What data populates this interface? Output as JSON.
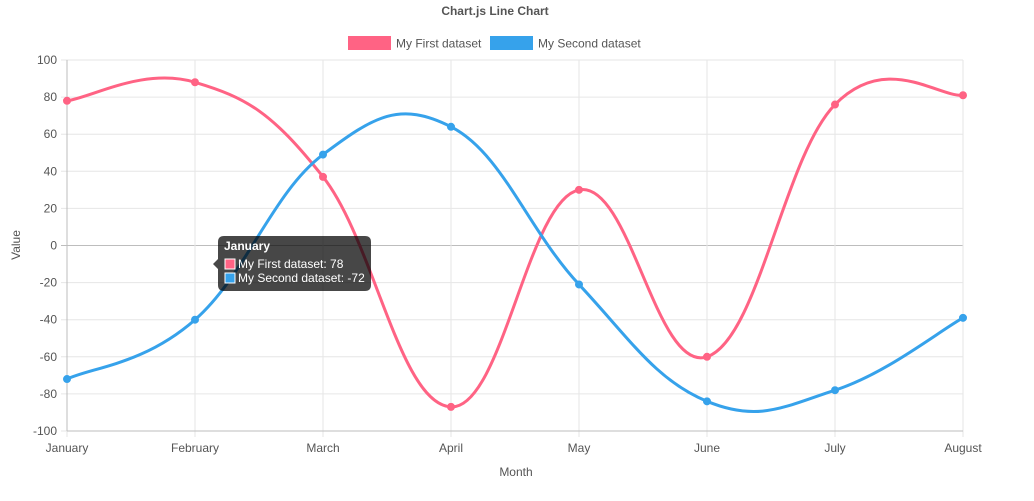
{
  "chart_data": {
    "type": "line",
    "title": "Chart.js Line Chart",
    "xlabel": "Month",
    "ylabel": "Value",
    "categories": [
      "January",
      "February",
      "March",
      "April",
      "May",
      "June",
      "July",
      "August"
    ],
    "ylim": [
      -100,
      100
    ],
    "ytick_step": 20,
    "grid": true,
    "legend_position": "top",
    "series": [
      {
        "name": "My First dataset",
        "color": "#ff6384",
        "values": [
          78,
          88,
          37,
          -87,
          30,
          -60,
          76,
          81
        ]
      },
      {
        "name": "My Second dataset",
        "color": "#36a2eb",
        "values": [
          -72,
          -40,
          49,
          64,
          -21,
          -84,
          -78,
          -39
        ]
      }
    ],
    "tooltip": {
      "title": "January",
      "lines": [
        "My First dataset: 78",
        "My Second dataset: -72"
      ]
    }
  }
}
